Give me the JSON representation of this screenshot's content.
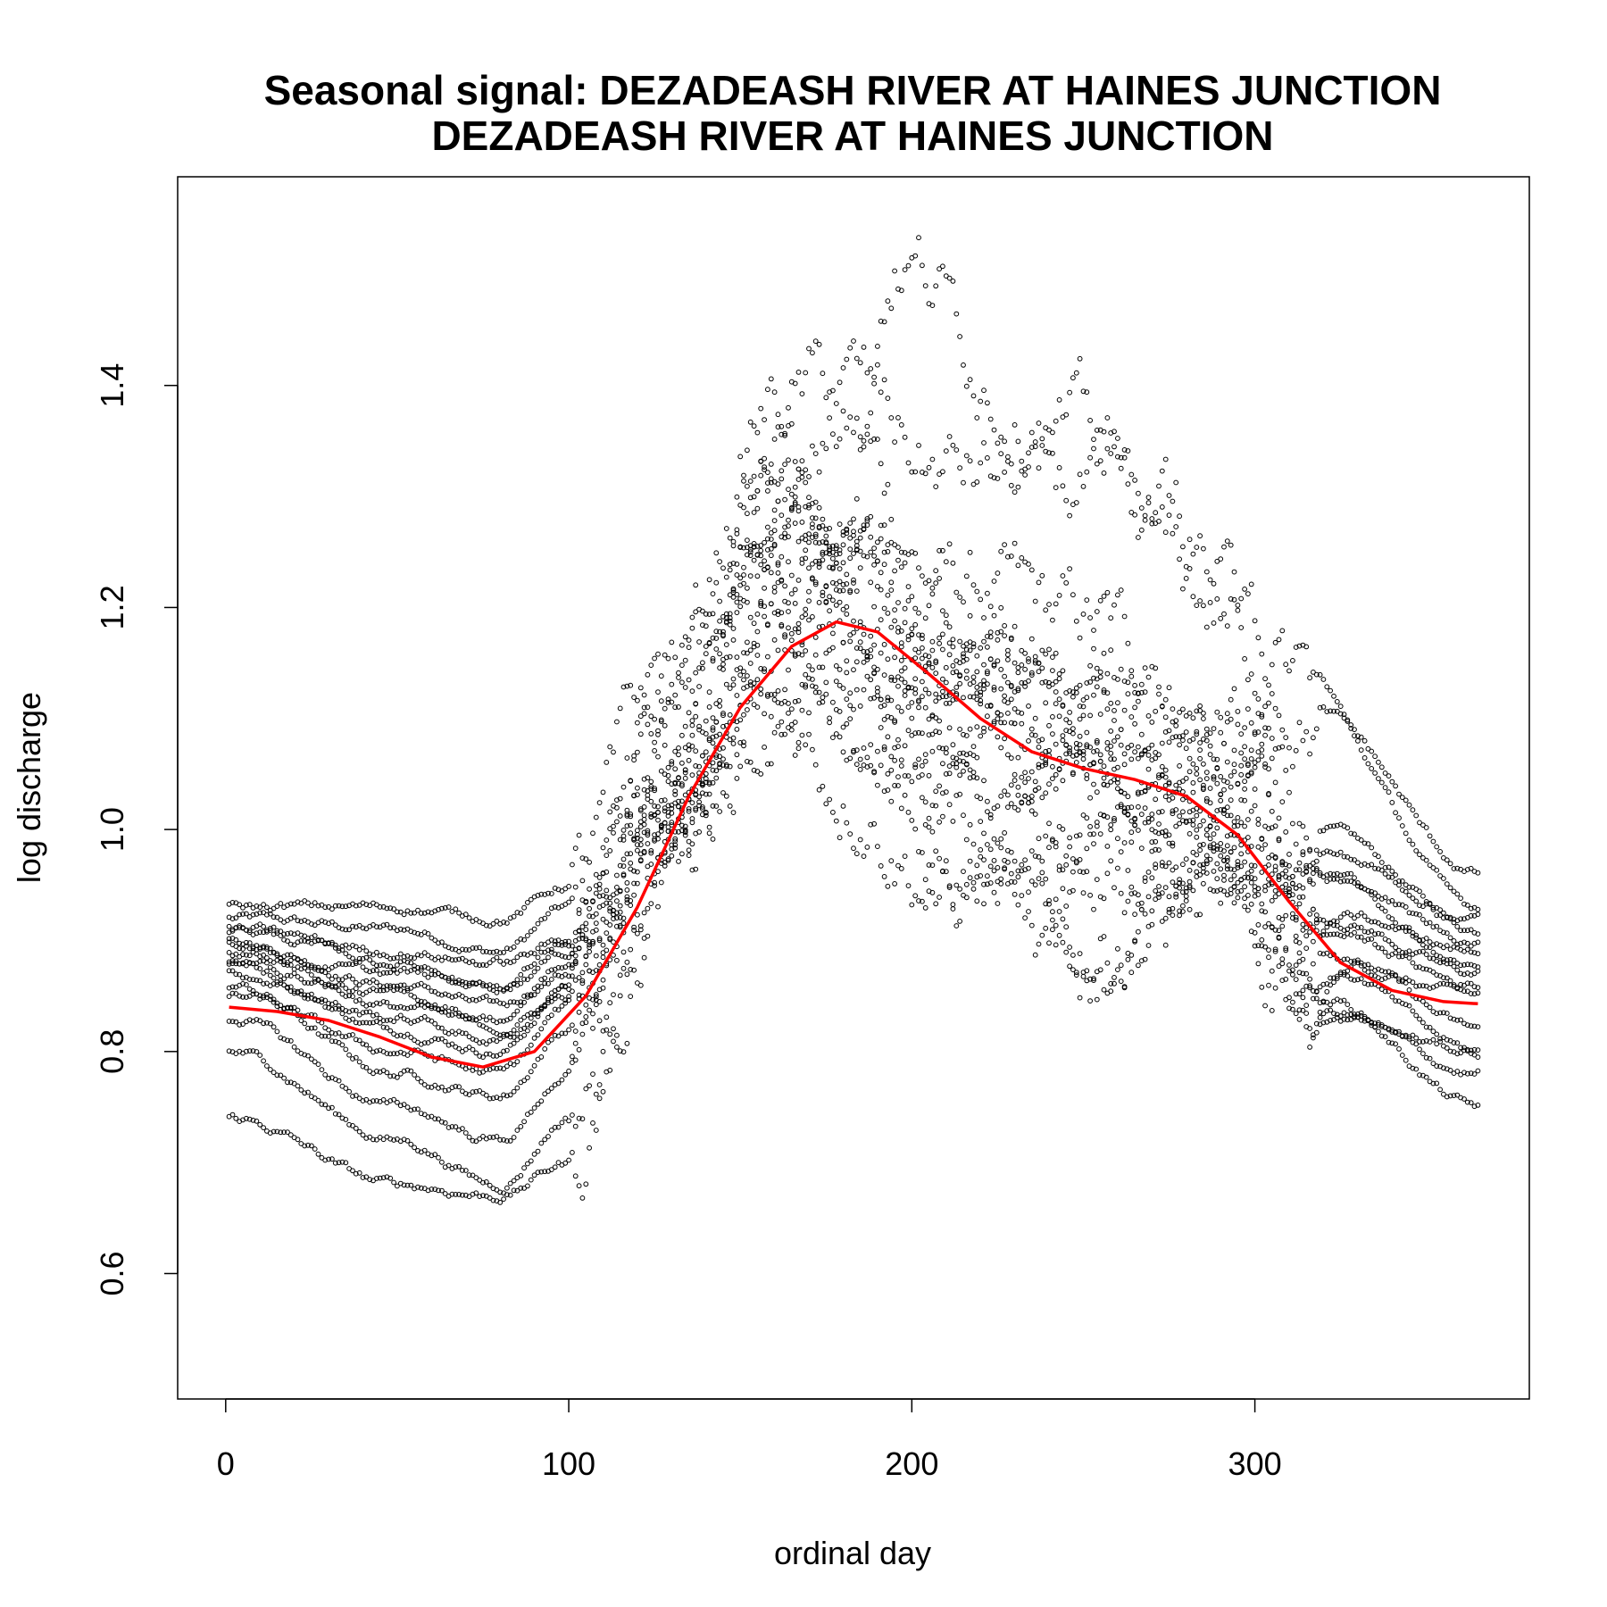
{
  "chart_data": {
    "type": "scatter",
    "title_line1": "Seasonal signal: DEZADEASH RIVER AT HAINES JUNCTION",
    "title_line2": "DEZADEASH RIVER AT HAINES JUNCTION",
    "xlabel": "ordinal day",
    "ylabel": "log discharge",
    "xlim": [
      -14,
      380
    ],
    "ylim": [
      0.487,
      1.588
    ],
    "xticks": [
      0,
      100,
      200,
      300
    ],
    "xtick_labels": [
      "0",
      "100",
      "200",
      "300"
    ],
    "yticks": [
      0.6,
      0.8,
      1.0,
      1.2,
      1.4
    ],
    "ytick_labels": [
      "0.6",
      "0.8",
      "1.0",
      "1.2",
      "1.4"
    ],
    "grid": false,
    "series": [
      {
        "kind": "points",
        "color": "#000000",
        "marker": "open-circle",
        "x_range": [
          1,
          365
        ],
        "year_curves": [
          {
            "days": [
              1,
              50,
              80,
              100,
              130,
              160,
              180,
              210,
              250,
              290,
              320,
              365
            ],
            "values": [
              0.92,
              0.91,
              0.89,
              0.93,
              1.1,
              1.33,
              1.36,
              1.22,
              1.18,
              1.1,
              1.0,
              0.91
            ]
          },
          {
            "days": [
              1,
              50,
              80,
              100,
              130,
              160,
              180,
              210,
              250,
              290,
              320,
              365
            ],
            "values": [
              0.9,
              0.86,
              0.84,
              0.88,
              1.05,
              1.25,
              1.25,
              1.15,
              1.08,
              1.05,
              0.95,
              0.88
            ]
          },
          {
            "days": [
              1,
              50,
              80,
              100,
              130,
              160,
              180,
              210,
              250,
              290,
              320,
              365
            ],
            "values": [
              0.88,
              0.82,
              0.8,
              0.86,
              1.0,
              1.2,
              1.18,
              1.05,
              1.0,
              0.98,
              0.92,
              0.87
            ]
          },
          {
            "days": [
              1,
              50,
              80,
              100,
              130,
              160,
              180,
              210,
              250,
              290,
              320,
              365
            ],
            "values": [
              0.86,
              0.78,
              0.76,
              0.82,
              0.98,
              1.15,
              1.12,
              1.0,
              0.96,
              0.95,
              0.88,
              0.85
            ]
          },
          {
            "days": [
              1,
              50,
              80,
              100,
              130,
              160,
              180,
              210,
              250,
              290,
              320,
              365
            ],
            "values": [
              0.8,
              0.72,
              0.68,
              0.74,
              0.95,
              1.3,
              1.28,
              1.1,
              1.05,
              1.02,
              0.9,
              0.82
            ]
          },
          {
            "days": [
              1,
              50,
              80,
              100,
              130,
              160,
              180,
              210,
              250,
              290,
              320,
              365
            ],
            "values": [
              0.74,
              0.68,
              0.67,
              0.7,
              1.0,
              1.1,
              1.05,
              0.95,
              0.9,
              0.93,
              0.85,
              0.75
            ]
          },
          {
            "days": [
              1,
              50,
              80,
              100,
              130,
              160,
              180,
              210,
              250,
              290,
              320,
              365
            ],
            "values": [
              0.93,
              0.93,
              0.92,
              0.95,
              1.15,
              1.38,
              1.4,
              1.32,
              1.3,
              1.2,
              1.1,
              0.96
            ]
          },
          {
            "days": [
              1,
              50,
              80,
              100,
              130,
              160,
              180,
              210,
              250,
              290,
              320,
              365
            ],
            "values": [
              0.85,
              0.8,
              0.78,
              0.84,
              1.02,
              1.18,
              1.15,
              1.08,
              1.03,
              1.0,
              0.88,
              0.8
            ]
          },
          {
            "days": [
              1,
              50,
              80,
              100,
              130,
              160,
              180,
              210,
              250,
              290,
              320,
              365
            ],
            "values": [
              0.9,
              0.84,
              0.82,
              0.85,
              1.03,
              1.22,
              1.18,
              1.12,
              1.08,
              1.04,
              0.93,
              0.89
            ]
          },
          {
            "days": [
              1,
              50,
              80,
              100,
              130,
              160,
              180,
              210,
              250,
              290,
              320,
              365
            ],
            "values": [
              0.83,
              0.75,
              0.72,
              0.78,
              0.96,
              1.12,
              1.08,
              1.02,
              0.98,
              0.96,
              0.84,
              0.78
            ]
          },
          {
            "days": [
              1,
              50,
              80,
              100,
              130,
              160,
              180,
              195,
              230,
              270,
              310,
              365
            ],
            "values": [
              0.91,
              0.89,
              0.88,
              0.9,
              1.08,
              1.28,
              1.3,
              1.52,
              1.4,
              1.3,
              1.14,
              0.93
            ]
          },
          {
            "days": [
              1,
              50,
              80,
              100,
              130,
              160,
              180,
              210,
              250,
              290,
              320,
              365
            ],
            "values": [
              0.89,
              0.87,
              0.86,
              0.89,
              1.06,
              1.27,
              1.22,
              1.17,
              1.12,
              1.08,
              0.96,
              0.9
            ]
          },
          {
            "days": [
              1,
              50,
              80,
              100,
              130,
              160,
              180,
              210,
              250,
              290,
              320,
              365
            ],
            "values": [
              0.87,
              0.83,
              0.81,
              0.86,
              1.01,
              1.19,
              1.1,
              0.96,
              0.88,
              0.95,
              0.83,
              0.8
            ]
          },
          {
            "days": [
              1,
              50,
              80,
              100,
              130,
              160,
              180,
              210,
              250,
              290,
              320,
              365
            ],
            "values": [
              0.91,
              0.88,
              0.86,
              0.9,
              1.09,
              1.32,
              1.26,
              1.2,
              1.14,
              1.09,
              0.98,
              0.92
            ]
          },
          {
            "days": [
              1,
              50,
              80,
              100,
              130,
              160,
              180,
              210,
              250,
              290,
              320,
              365
            ],
            "values": [
              0.88,
              0.85,
              0.83,
              0.87,
              1.04,
              1.24,
              1.2,
              1.13,
              1.06,
              1.02,
              0.91,
              0.86
            ]
          }
        ]
      },
      {
        "kind": "line",
        "color": "#ff0000",
        "x": [
          1,
          15,
          30,
          45,
          60,
          75,
          90,
          105,
          120,
          135,
          150,
          165,
          178,
          190,
          205,
          220,
          235,
          250,
          265,
          280,
          295,
          310,
          325,
          340,
          355,
          365
        ],
        "y": [
          0.84,
          0.836,
          0.828,
          0.813,
          0.795,
          0.786,
          0.8,
          0.85,
          0.93,
          1.03,
          1.11,
          1.165,
          1.187,
          1.178,
          1.14,
          1.1,
          1.07,
          1.055,
          1.045,
          1.03,
          0.995,
          0.935,
          0.88,
          0.855,
          0.845,
          0.843
        ]
      }
    ]
  }
}
